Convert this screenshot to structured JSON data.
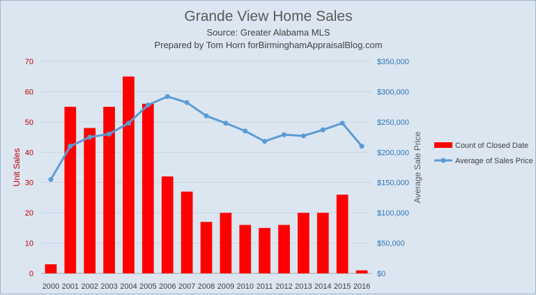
{
  "chart_data": {
    "type": "bar+line",
    "title": "Grande View Home Sales",
    "subtitles": [
      "Source: Greater Alabama MLS",
      "Prepared by Tom Horn forBirminghamAppraisalBlog.com"
    ],
    "categories": [
      "2000",
      "2001",
      "2002",
      "2003",
      "2004",
      "2005",
      "2006",
      "2007",
      "2008",
      "2009",
      "2010",
      "2011",
      "2012",
      "2013",
      "2014",
      "2015",
      "2016"
    ],
    "series": [
      {
        "name": "Count of Closed Date",
        "type": "bar",
        "axis": "left",
        "color": "#ff0000",
        "values": [
          3,
          55,
          48,
          55,
          65,
          56,
          32,
          27,
          17,
          20,
          16,
          15,
          16,
          20,
          20,
          26,
          1
        ]
      },
      {
        "name": "Average of Sales Price",
        "type": "line",
        "axis": "right",
        "color": "#5b9bd5",
        "values": [
          155000,
          210000,
          225000,
          230000,
          248000,
          278000,
          292000,
          282000,
          260000,
          248000,
          235000,
          218000,
          229000,
          227000,
          237000,
          248000,
          210000
        ]
      }
    ],
    "ylabel_left": "Unit Sales",
    "ylabel_right": "Average Sale Price",
    "ylim_left": [
      0,
      70
    ],
    "yticks_left": [
      0,
      10,
      20,
      30,
      40,
      50,
      60,
      70
    ],
    "yticks_left_labels": [
      "0",
      "10",
      "20",
      "30",
      "40",
      "50",
      "60",
      "70"
    ],
    "ylim_right": [
      0,
      350000
    ],
    "yticks_right": [
      0,
      50000,
      100000,
      150000,
      200000,
      250000,
      300000,
      350000
    ],
    "yticks_right_labels": [
      "$0",
      "$50,000",
      "$100,000",
      "$150,000",
      "$200,000",
      "$250,000",
      "$300,000",
      "$350,000"
    ],
    "grid": true,
    "legend_position": "right"
  }
}
